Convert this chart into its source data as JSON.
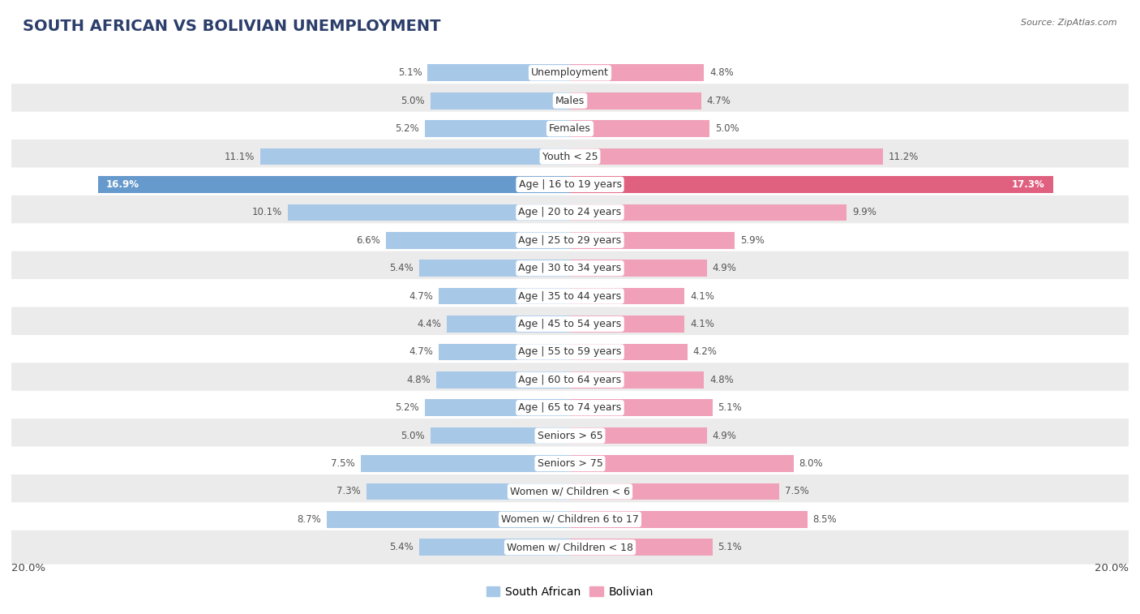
{
  "title": "SOUTH AFRICAN VS BOLIVIAN UNEMPLOYMENT",
  "source": "Source: ZipAtlas.com",
  "categories": [
    "Unemployment",
    "Males",
    "Females",
    "Youth < 25",
    "Age | 16 to 19 years",
    "Age | 20 to 24 years",
    "Age | 25 to 29 years",
    "Age | 30 to 34 years",
    "Age | 35 to 44 years",
    "Age | 45 to 54 years",
    "Age | 55 to 59 years",
    "Age | 60 to 64 years",
    "Age | 65 to 74 years",
    "Seniors > 65",
    "Seniors > 75",
    "Women w/ Children < 6",
    "Women w/ Children 6 to 17",
    "Women w/ Children < 18"
  ],
  "south_african": [
    5.1,
    5.0,
    5.2,
    11.1,
    16.9,
    10.1,
    6.6,
    5.4,
    4.7,
    4.4,
    4.7,
    4.8,
    5.2,
    5.0,
    7.5,
    7.3,
    8.7,
    5.4
  ],
  "bolivian": [
    4.8,
    4.7,
    5.0,
    11.2,
    17.3,
    9.9,
    5.9,
    4.9,
    4.1,
    4.1,
    4.2,
    4.8,
    5.1,
    4.9,
    8.0,
    7.5,
    8.5,
    5.1
  ],
  "sa_color": "#a8c8e8",
  "bo_color": "#f0a0b8",
  "sa_color_highlight": "#6699cc",
  "bo_color_highlight": "#e06080",
  "bg_color": "#ffffff",
  "row_color_light": "#ffffff",
  "row_color_dark": "#ebebeb",
  "max_val": 20.0,
  "legend_sa": "South African",
  "legend_bo": "Bolivian",
  "title_fontsize": 14,
  "label_fontsize": 9,
  "value_fontsize": 8.5
}
